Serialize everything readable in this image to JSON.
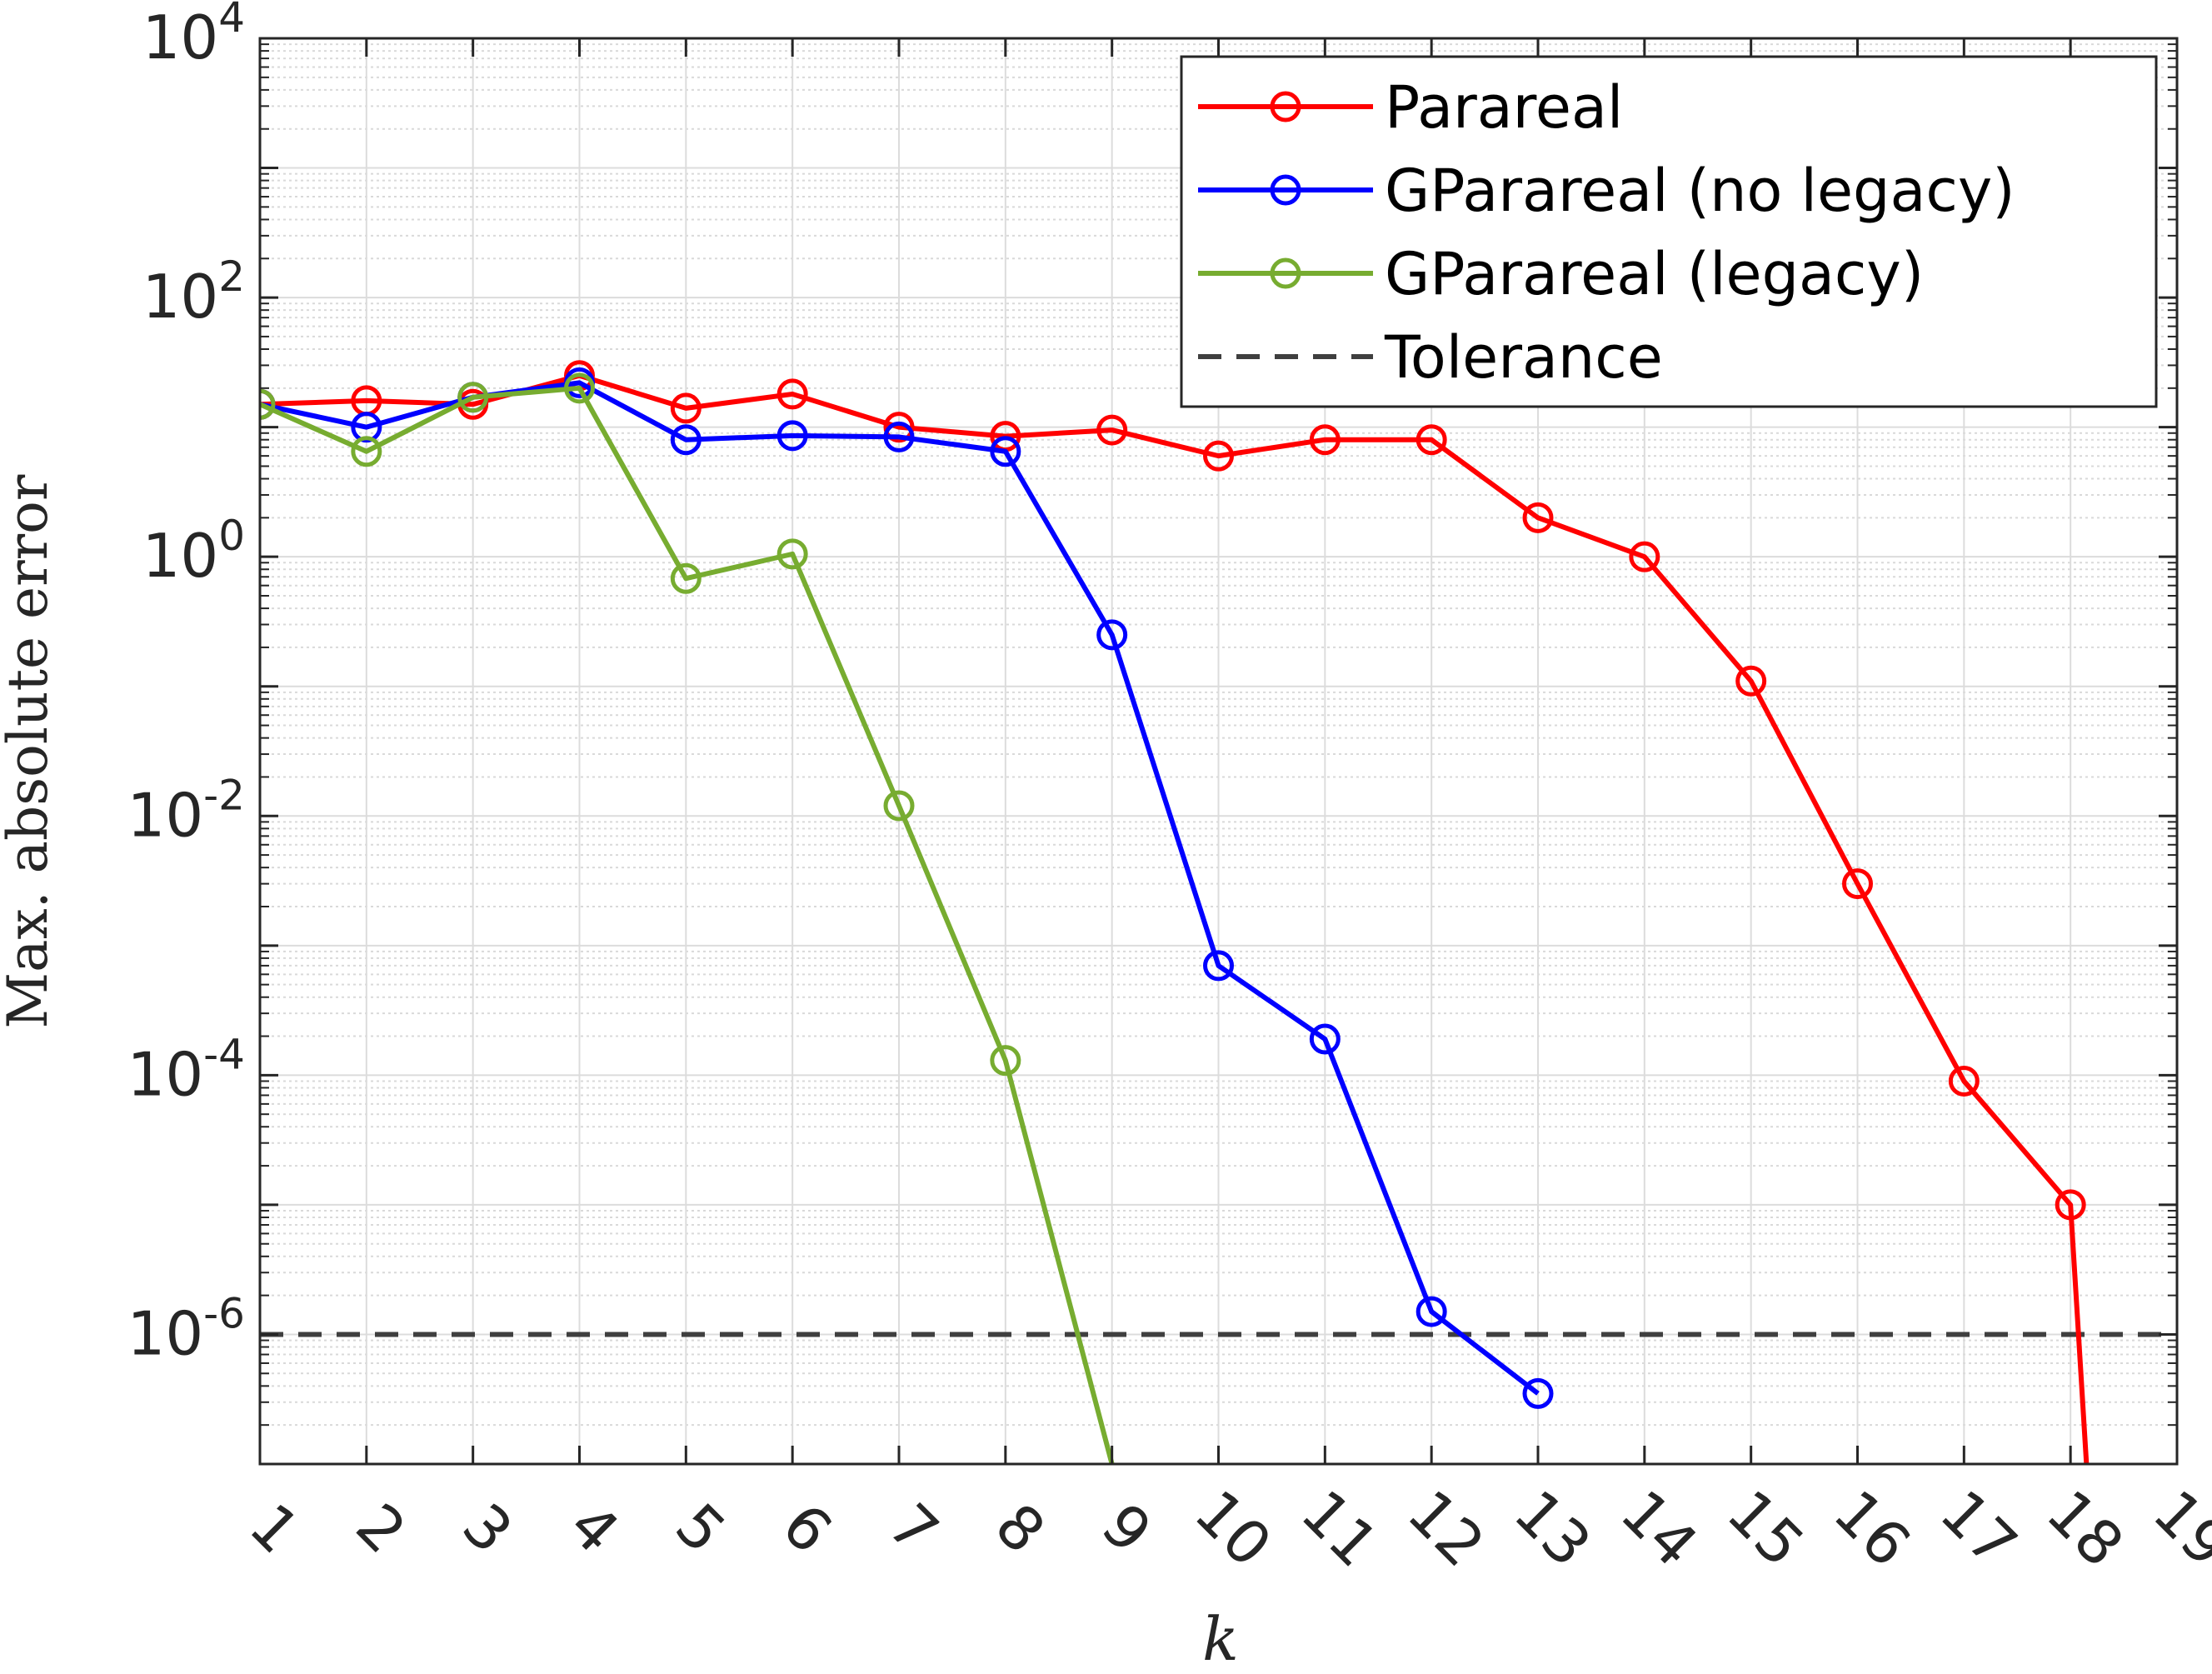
{
  "chart_data": {
    "type": "line",
    "title": "",
    "xlabel": "k",
    "ylabel": "Max. absolute error",
    "xlim": [
      1,
      19
    ],
    "ylim_log10": [
      -7,
      4
    ],
    "yscale": "log",
    "grid": true,
    "minor_grid": true,
    "legend_position": "top-right",
    "x_ticks": [
      "1",
      "2",
      "3",
      "4",
      "5",
      "6",
      "7",
      "8",
      "9",
      "10",
      "11",
      "12",
      "13",
      "14",
      "15",
      "16",
      "17",
      "18",
      "19"
    ],
    "y_ticks": [
      {
        "base": "10",
        "exp": "-6",
        "log10": -6
      },
      {
        "base": "10",
        "exp": "-4",
        "log10": -4
      },
      {
        "base": "10",
        "exp": "-2",
        "log10": -2
      },
      {
        "base": "10",
        "exp": "0",
        "log10": 0
      },
      {
        "base": "10",
        "exp": "2",
        "log10": 2
      },
      {
        "base": "10",
        "exp": "4",
        "log10": 4
      }
    ],
    "series": [
      {
        "name": "Parareal",
        "color": "#ff0000",
        "x": [
          1,
          2,
          3,
          4,
          5,
          6,
          7,
          8,
          9,
          10,
          11,
          12,
          13,
          14,
          15,
          16,
          17,
          18
        ],
        "y": [
          15,
          16,
          15,
          25,
          14,
          18,
          10,
          8.5,
          9.5,
          6,
          8,
          8,
          2,
          1,
          0.11,
          0.003,
          9e-05,
          1e-05
        ],
        "tail_to": {
          "x": 18.15,
          "y": 1e-07
        }
      },
      {
        "name": "GParareal (no legacy)",
        "color": "#0000ff",
        "x": [
          1,
          2,
          3,
          4,
          5,
          6,
          7,
          8,
          9,
          10,
          11,
          12,
          13
        ],
        "y": [
          15,
          10,
          17,
          22,
          8,
          8.6,
          8.4,
          6.5,
          0.25,
          0.0007,
          0.00019,
          1.5e-06,
          3.5e-07
        ]
      },
      {
        "name": "GParareal (legacy)",
        "color": "#77ac30",
        "x": [
          1,
          2,
          3,
          4,
          5,
          6,
          7,
          8
        ],
        "y": [
          15,
          6.5,
          17,
          20,
          0.68,
          1.05,
          0.012,
          0.00013
        ],
        "tail_to": {
          "x": 9,
          "y": 1e-07
        }
      }
    ],
    "reference_line": {
      "name": "Tolerance",
      "y": 1e-06,
      "color": "#3f3f3f",
      "style": "dashed"
    }
  }
}
